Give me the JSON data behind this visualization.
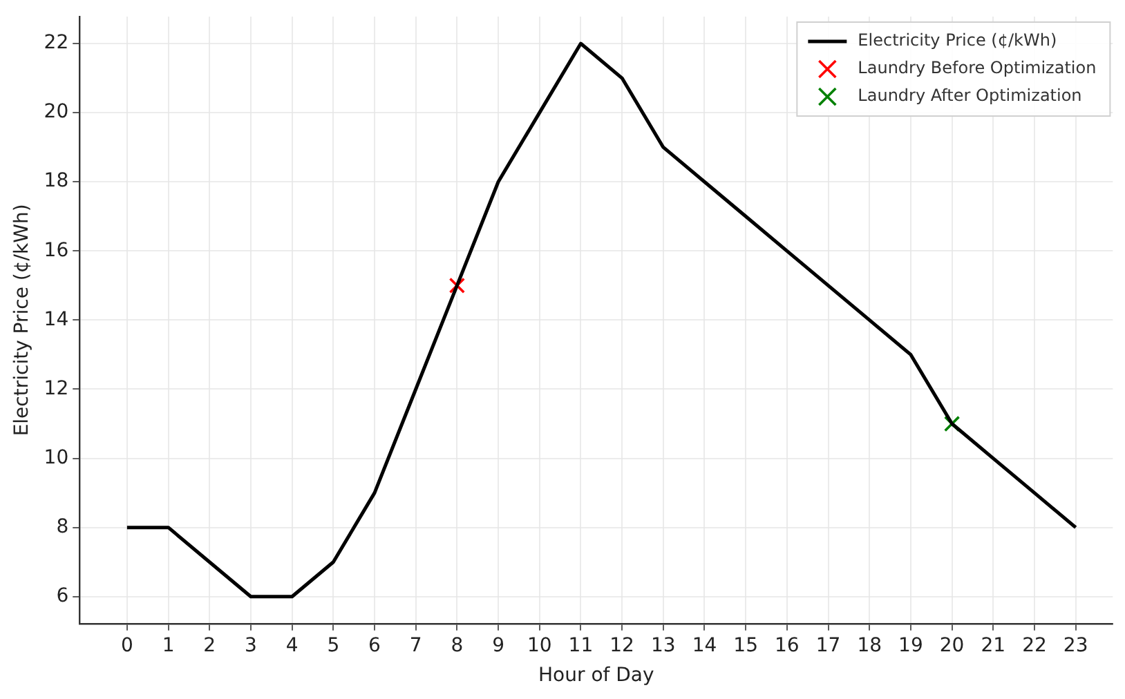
{
  "chart_data": {
    "type": "line",
    "xlabel": "Hour of Day",
    "ylabel": "Electricity Price (¢/kWh)",
    "x": [
      0,
      1,
      2,
      3,
      4,
      5,
      6,
      7,
      8,
      9,
      10,
      11,
      12,
      13,
      14,
      15,
      16,
      17,
      18,
      19,
      20,
      21,
      22,
      23
    ],
    "series": [
      {
        "name": "Electricity Price (¢/kWh)",
        "color": "#000000",
        "values": [
          8,
          8,
          7,
          6,
          6,
          7,
          9,
          12,
          15,
          18,
          20,
          22,
          21,
          19,
          18,
          17,
          16,
          15,
          14,
          13,
          11,
          10,
          9,
          8
        ]
      },
      {
        "name": "Laundry Before Optimization",
        "color": "#ff0000",
        "type": "scatter",
        "marker": "cross",
        "x": [
          8
        ],
        "values": [
          15
        ]
      },
      {
        "name": "Laundry After Optimization",
        "color": "#008000",
        "type": "scatter",
        "marker": "cross",
        "x": [
          20
        ],
        "values": [
          11
        ]
      }
    ],
    "xlim": [
      -1.15,
      23.9
    ],
    "xticks": [
      0,
      1,
      2,
      3,
      4,
      5,
      6,
      7,
      8,
      9,
      10,
      11,
      12,
      13,
      14,
      15,
      16,
      17,
      18,
      19,
      20,
      21,
      22,
      23
    ],
    "ylim": [
      5.22,
      22.78
    ],
    "yticks": [
      6,
      8,
      10,
      12,
      14,
      16,
      18,
      20,
      22
    ],
    "grid": true,
    "legend": "top right",
    "line_style": "solid"
  }
}
